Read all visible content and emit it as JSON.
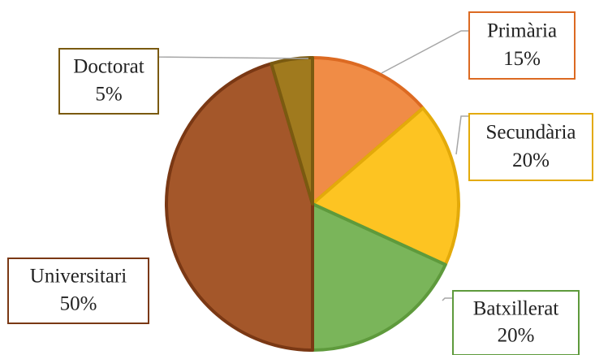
{
  "chart_data": {
    "type": "pie",
    "categories": [
      "Primària",
      "Secundària",
      "Batxillerat",
      "Universitari",
      "Doctorat"
    ],
    "values": [
      15,
      20,
      20,
      50,
      5
    ],
    "value_labels": [
      "15%",
      "20%",
      "20%",
      "50%",
      "5%"
    ],
    "colors": [
      "#f08c46",
      "#fdc422",
      "#7ab55a",
      "#a4572a",
      "#a07a1e"
    ],
    "edge_colors": [
      "#dc6a22",
      "#e3aa0a",
      "#5e9a3c",
      "#7a3814",
      "#7a5a10"
    ]
  }
}
